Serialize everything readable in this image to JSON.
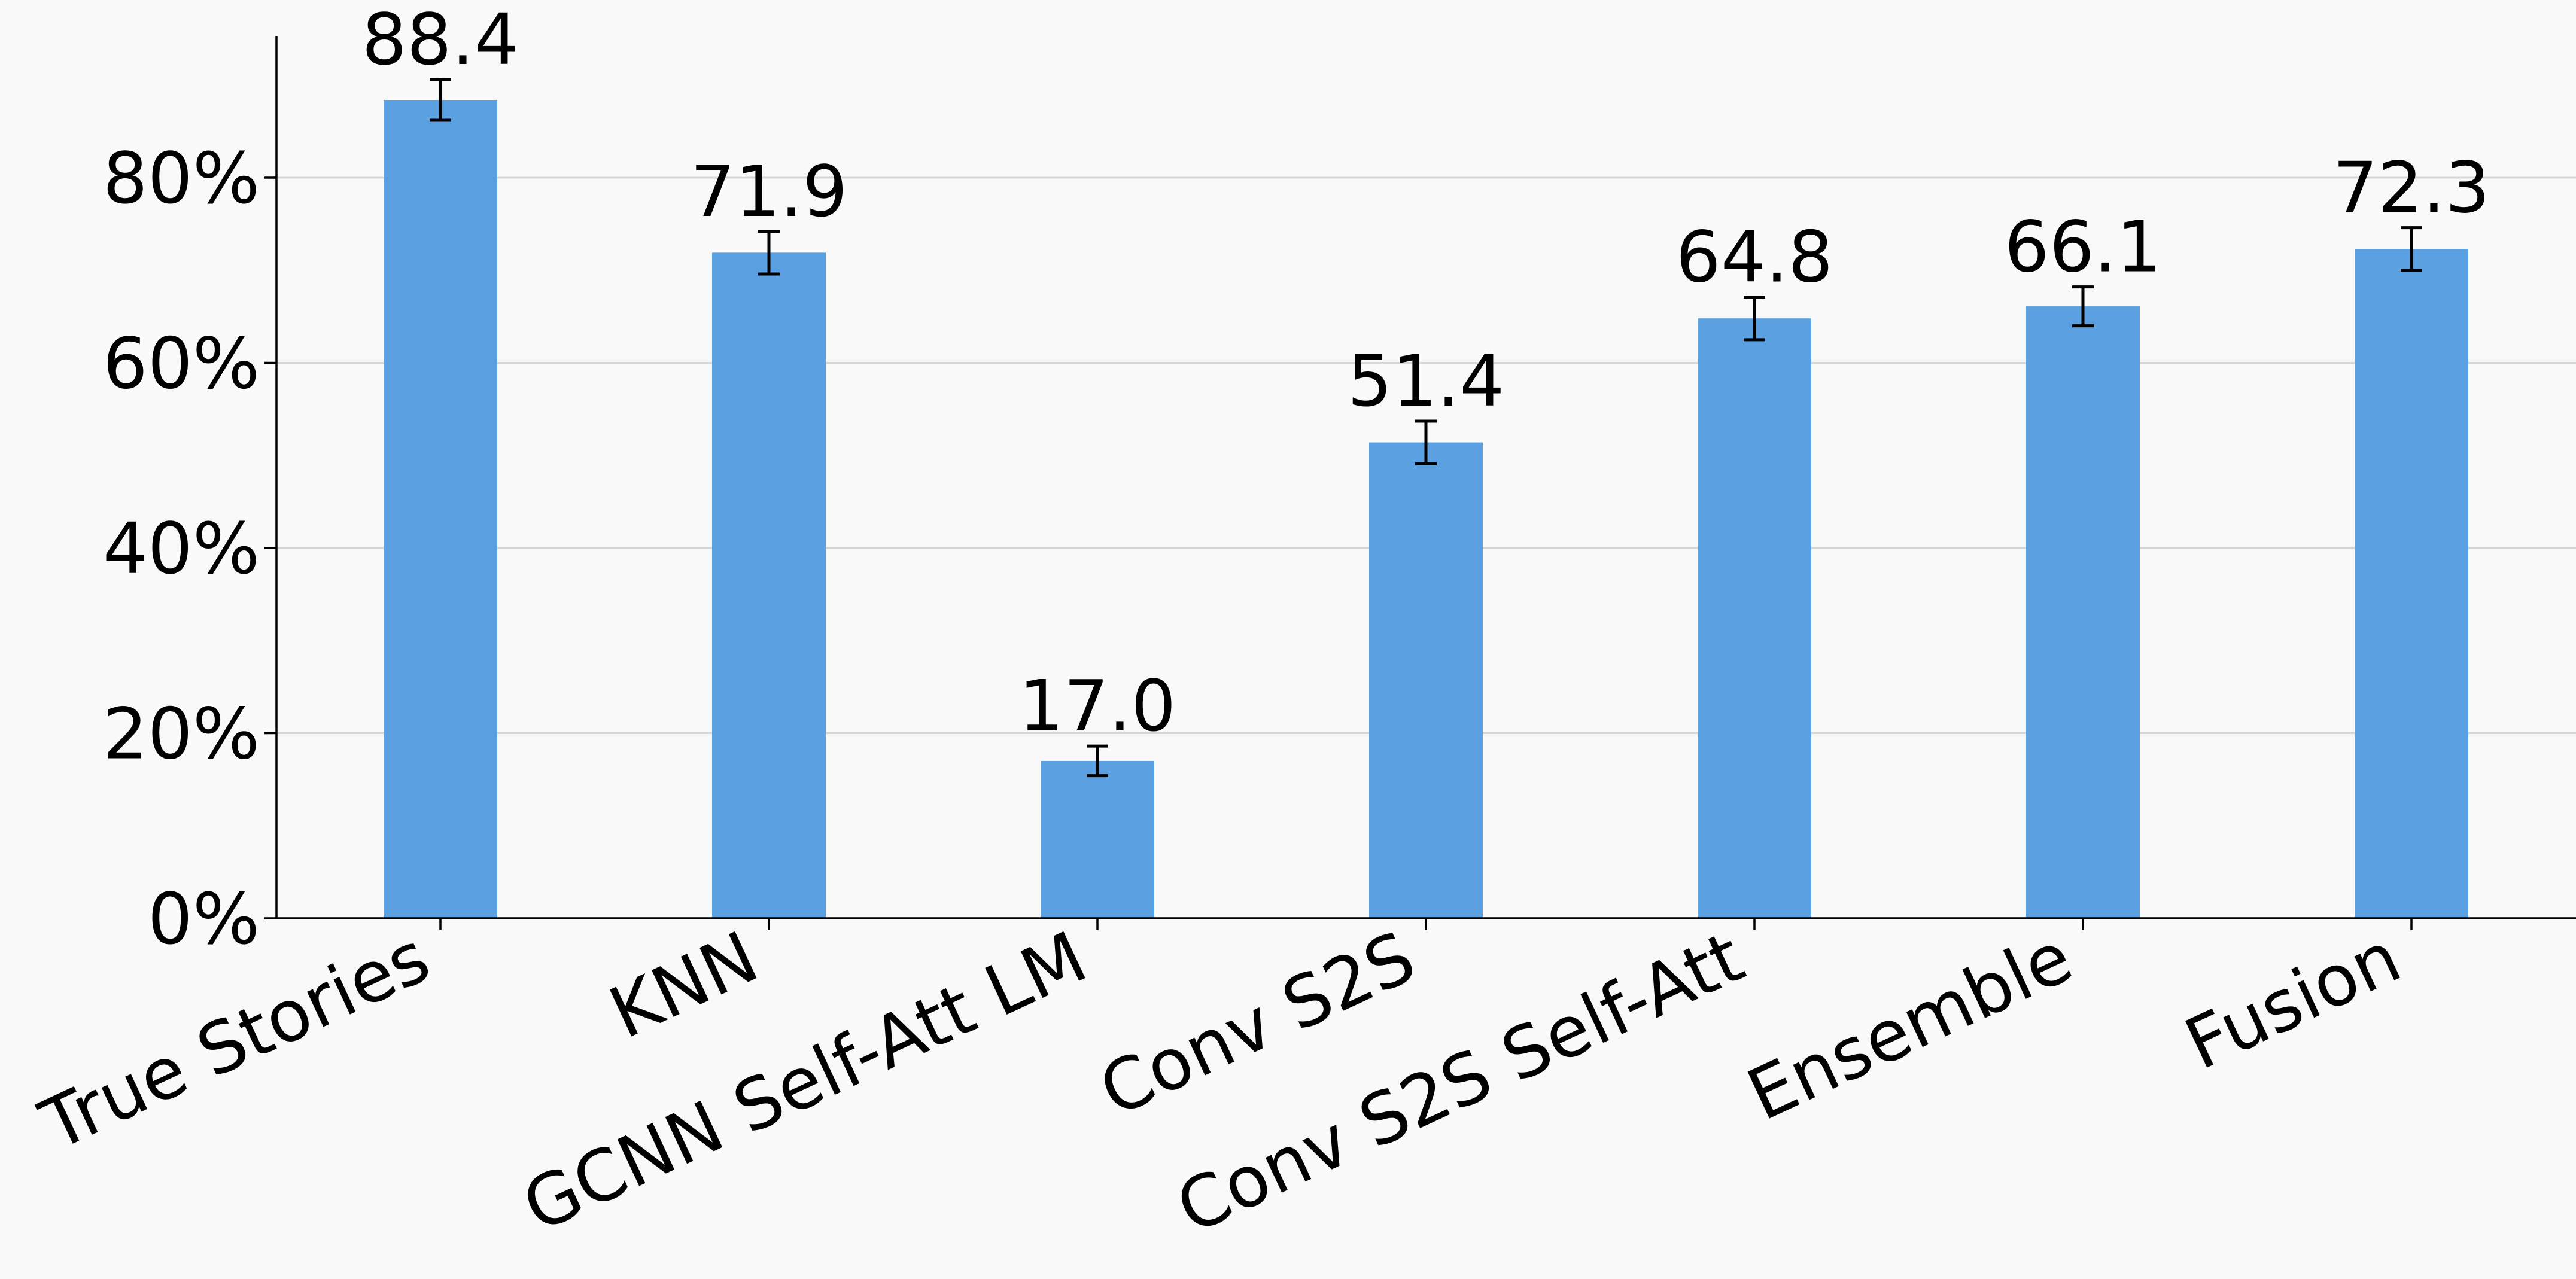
{
  "chart_data": {
    "type": "bar",
    "title": "",
    "xlabel": "",
    "ylabel": "",
    "categories": [
      "True Stories",
      "KNN",
      "GCNN Self-Att LM",
      "Conv S2S",
      "Conv S2S Self-Att",
      "Ensemble",
      "Fusion"
    ],
    "values": [
      88.4,
      71.9,
      17.0,
      51.4,
      64.8,
      66.1,
      72.3
    ],
    "data_labels": [
      "88.4",
      "71.9",
      "17.0",
      "51.4",
      "64.8",
      "66.1",
      "72.3"
    ],
    "error": [
      2.2,
      2.3,
      1.6,
      2.3,
      2.3,
      2.1,
      2.3
    ],
    "ylim": [
      0,
      95
    ],
    "yticks": [
      0,
      20,
      40,
      60,
      80
    ],
    "ytick_labels": [
      "0%",
      "20%",
      "40%",
      "60%",
      "80%"
    ],
    "grid": "horizontal",
    "legend": "none",
    "colors": {
      "bar": "#5ba0e0",
      "grid": "#d6d6d6",
      "background": "#f9f9f9"
    }
  }
}
